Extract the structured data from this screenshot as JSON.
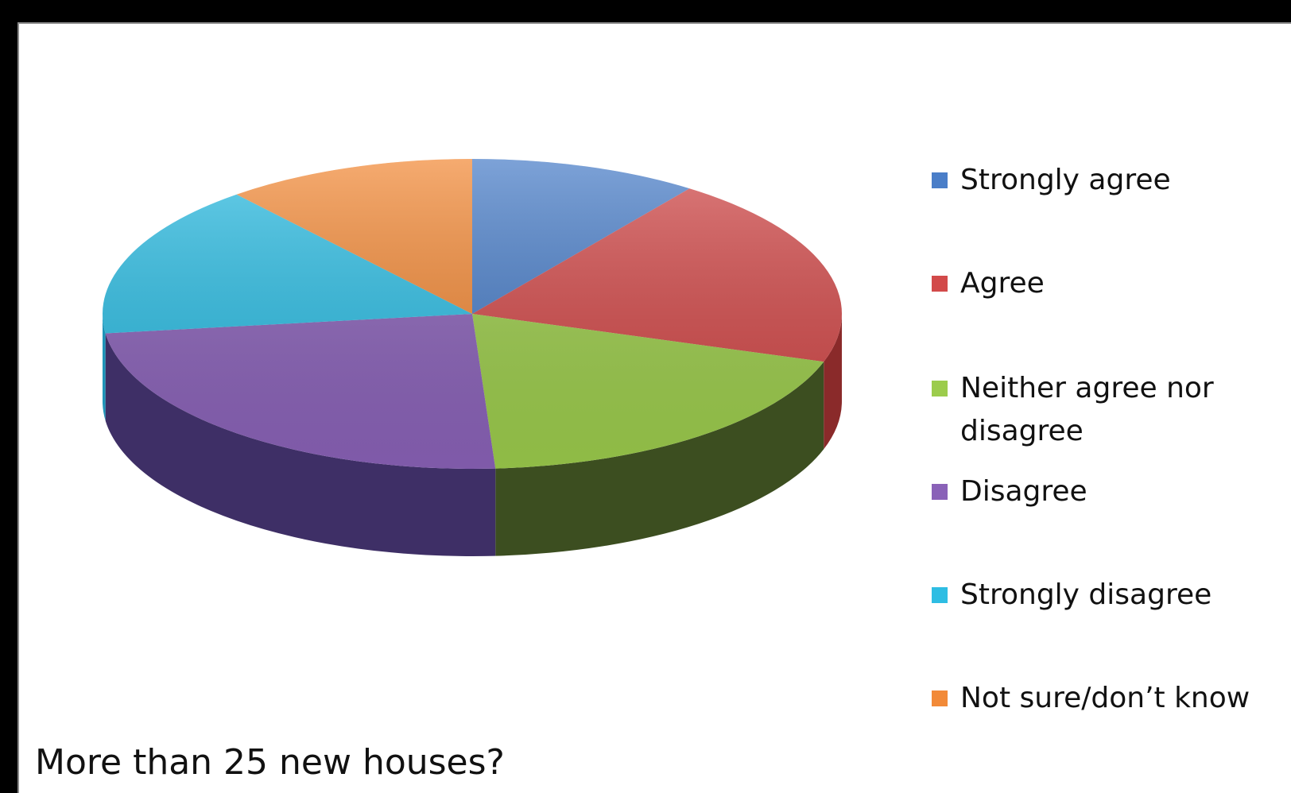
{
  "chart_data": {
    "type": "pie",
    "style": "3d",
    "title": "More than 25 new houses?",
    "legend_position": "right",
    "categories": [
      "Strongly agree",
      "Agree",
      "Neither agree nor disagree",
      "Disagree",
      "Strongly disagree",
      "Not sure/don’t know"
    ],
    "values": [
      10,
      20,
      19,
      24,
      16,
      11
    ],
    "colors": [
      "#4a7ec8",
      "#d24a4a",
      "#9ccc4c",
      "#8a62b8",
      "#2ebde3",
      "#f28a38"
    ],
    "side_colors": [
      "#2e5190",
      "#8a2a2a",
      "#3c4e20",
      "#3e2f66",
      "#1f94b8",
      "#b55e22"
    ]
  }
}
